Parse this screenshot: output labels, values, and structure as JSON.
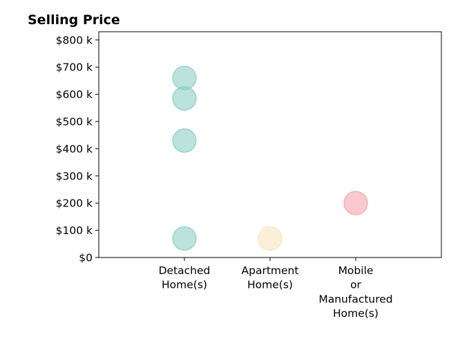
{
  "chart_data": {
    "type": "scatter",
    "title": "Selling Price",
    "xlabel": "",
    "ylabel": "",
    "categories": [
      [
        "Detached",
        "Home(s)"
      ],
      [
        "Apartment",
        "Home(s)"
      ],
      [
        "Mobile",
        "or",
        "Manufactured",
        "Home(s)"
      ]
    ],
    "y_ticks": [
      0,
      100000,
      200000,
      300000,
      400000,
      500000,
      600000,
      700000,
      800000
    ],
    "y_tick_labels": [
      "$0",
      "$100 k",
      "$200 k",
      "$300 k",
      "$400 k",
      "$500 k",
      "$600 k",
      "$700 k",
      "$800 k"
    ],
    "ylim": [
      0,
      830000
    ],
    "xlim": [
      -1,
      3
    ],
    "grid": false,
    "points": [
      {
        "category": 0,
        "value": 660000,
        "color": "#8fcfc6"
      },
      {
        "category": 0,
        "value": 585000,
        "color": "#8fcfc6"
      },
      {
        "category": 0,
        "value": 430000,
        "color": "#8fcfc6"
      },
      {
        "category": 0,
        "value": 70000,
        "color": "#8fcfc6"
      },
      {
        "category": 1,
        "value": 70000,
        "color": "#f7e4bd"
      },
      {
        "category": 2,
        "value": 200000,
        "color": "#f4a6ae"
      }
    ]
  }
}
